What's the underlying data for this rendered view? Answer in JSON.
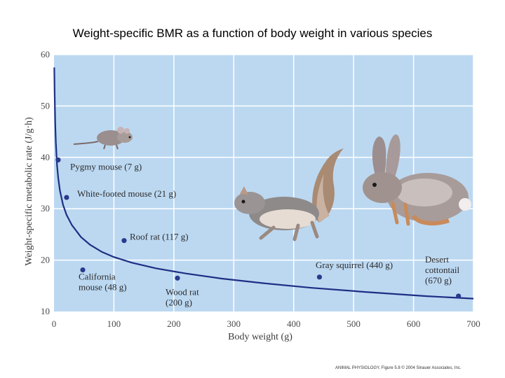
{
  "title": "Weight-specific BMR as a function of body weight in various species",
  "credit": "ANIMAL PHYSIOLOGY, Figure 5.8 © 2004 Sinauer Associates, Inc.",
  "chart_data": {
    "type": "scatter",
    "xlabel": "Body weight (g)",
    "ylabel": "Weight-specific metabolic rate (J/g·h)",
    "xlim": [
      0,
      700
    ],
    "ylim": [
      10,
      60
    ],
    "xticks": [
      0,
      100,
      200,
      300,
      400,
      500,
      600,
      700
    ],
    "yticks": [
      10,
      20,
      30,
      40,
      50,
      60
    ],
    "points": [
      {
        "name": "Pygmy mouse",
        "label_lines": [
          "Pygmy mouse (7 g)"
        ],
        "x": 7,
        "y": 39.5
      },
      {
        "name": "White-footed mouse",
        "label_lines": [
          "White-footed mouse (21 g)"
        ],
        "x": 21,
        "y": 32.2
      },
      {
        "name": "California mouse",
        "label_lines": [
          "California",
          "mouse (48 g)"
        ],
        "x": 48,
        "y": 18.1
      },
      {
        "name": "Roof rat",
        "label_lines": [
          "Roof rat (117 g)"
        ],
        "x": 117,
        "y": 23.8
      },
      {
        "name": "Wood rat",
        "label_lines": [
          "Wood rat",
          "(200 g)"
        ],
        "x": 206,
        "y": 16.5
      },
      {
        "name": "Gray squirrel",
        "label_lines": [
          "Gray squirrel (440 g)"
        ],
        "x": 443,
        "y": 16.7
      },
      {
        "name": "Desert cottontail",
        "label_lines": [
          "Desert",
          "cottontail",
          "(670 g)"
        ],
        "x": 675,
        "y": 13.0
      }
    ],
    "fit_curve": {
      "description": "allometric fit",
      "x": [
        0.5,
        1,
        2,
        3,
        5,
        7,
        10,
        15,
        21,
        30,
        45,
        60,
        80,
        100,
        130,
        170,
        220,
        280,
        350,
        430,
        520,
        620,
        700
      ],
      "y": [
        57.5,
        52.5,
        46.8,
        43.0,
        38.5,
        36.0,
        33.5,
        30.8,
        28.8,
        26.8,
        24.5,
        23.0,
        21.6,
        20.6,
        19.5,
        18.4,
        17.4,
        16.4,
        15.5,
        14.6,
        13.8,
        13.0,
        12.5
      ]
    },
    "colors": {
      "plot_bg": "#bcd8f1",
      "grid": "#ffffff",
      "curve": "#1f2e84",
      "points": "#2a3a8c"
    }
  }
}
